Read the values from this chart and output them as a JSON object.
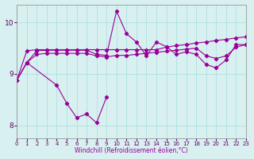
{
  "bg_color": "#d8f0f0",
  "line_color": "#990099",
  "grid_color": "#aadddd",
  "xlabel": "Windchill (Refroidissement éolien,°C)",
  "ylim": [
    7.75,
    10.35
  ],
  "xlim": [
    0,
    23
  ],
  "line_top_x": [
    0,
    1,
    2,
    3,
    4,
    5,
    6,
    7,
    8,
    9,
    10,
    11,
    12,
    13,
    14,
    15,
    16,
    17,
    18,
    19,
    20,
    21,
    22,
    23
  ],
  "line_top_y": [
    8.88,
    9.45,
    9.47,
    9.47,
    9.47,
    9.47,
    9.47,
    9.47,
    9.47,
    9.47,
    9.47,
    9.47,
    9.47,
    9.47,
    9.47,
    9.52,
    9.55,
    9.57,
    9.6,
    9.62,
    9.65,
    9.67,
    9.7,
    9.72
  ],
  "line_upper_mid_x": [
    0,
    1,
    2,
    3,
    4,
    5,
    6,
    7,
    8,
    9,
    10,
    11,
    12,
    13,
    14,
    15,
    16,
    17,
    18,
    19,
    20,
    21,
    22,
    23
  ],
  "line_upper_mid_y": [
    8.88,
    9.22,
    9.38,
    9.4,
    9.4,
    9.4,
    9.4,
    9.4,
    9.35,
    9.33,
    9.36,
    9.36,
    9.38,
    9.4,
    9.42,
    9.44,
    9.46,
    9.48,
    9.5,
    9.35,
    9.3,
    9.35,
    9.52,
    9.57
  ],
  "line_main_x": [
    0,
    1,
    2,
    3,
    4,
    5,
    6,
    7,
    8,
    9,
    10,
    11,
    12,
    13,
    14,
    15,
    16,
    17,
    18,
    19,
    20,
    21,
    22,
    23
  ],
  "line_main_y": [
    8.88,
    9.22,
    9.45,
    9.46,
    9.46,
    9.46,
    9.46,
    9.46,
    9.38,
    9.36,
    10.22,
    9.78,
    9.62,
    9.35,
    9.62,
    9.53,
    9.38,
    9.43,
    9.38,
    9.18,
    9.12,
    9.27,
    9.57,
    9.57
  ],
  "line_bot_x": [
    0,
    1,
    4,
    5,
    6,
    7,
    8,
    9
  ],
  "line_bot_y": [
    8.88,
    9.22,
    8.78,
    8.43,
    8.15,
    8.22,
    8.05,
    8.55
  ]
}
